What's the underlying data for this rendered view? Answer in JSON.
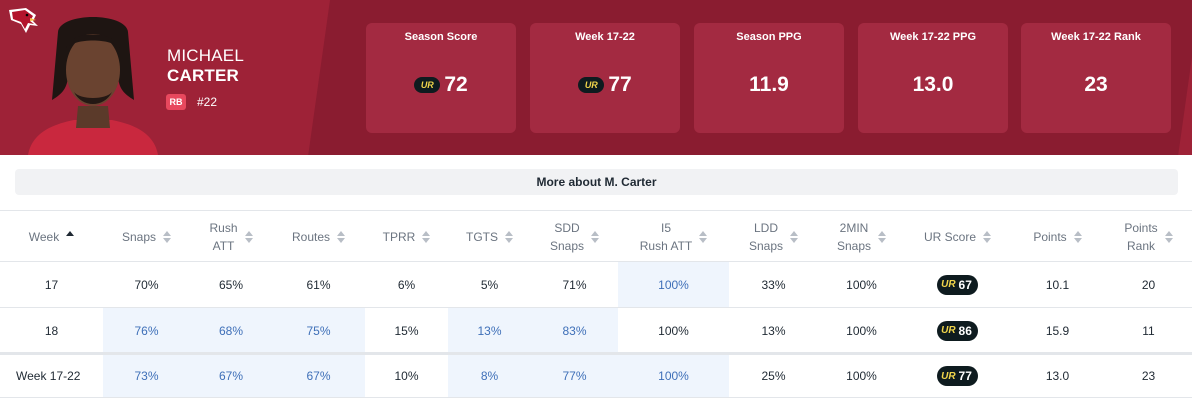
{
  "player": {
    "first_name": "MICHAEL",
    "last_name": "CARTER",
    "position": "RB",
    "jersey": "#22",
    "team_color": "#9e2237"
  },
  "cards": [
    {
      "title": "Season Score",
      "value": "72",
      "ur_logo": true
    },
    {
      "title": "Week 17-22",
      "value": "77",
      "ur_logo": true
    },
    {
      "title": "Season PPG",
      "value": "11.9",
      "ur_logo": false
    },
    {
      "title": "Week 17-22 PPG",
      "value": "13.0",
      "ur_logo": false
    },
    {
      "title": "Week 17-22 Rank",
      "value": "23",
      "ur_logo": false
    }
  ],
  "ur_logo_text": "UR",
  "more_button": "More about M. Carter",
  "table": {
    "headers": [
      {
        "l1": "Week",
        "l2": ""
      },
      {
        "l1": "Snaps",
        "l2": ""
      },
      {
        "l1": "Rush",
        "l2": "ATT"
      },
      {
        "l1": "Routes",
        "l2": ""
      },
      {
        "l1": "TPRR",
        "l2": ""
      },
      {
        "l1": "TGTS",
        "l2": ""
      },
      {
        "l1": "SDD",
        "l2": "Snaps"
      },
      {
        "l1": "I5",
        "l2": "Rush ATT"
      },
      {
        "l1": "LDD",
        "l2": "Snaps"
      },
      {
        "l1": "2MIN",
        "l2": "Snaps"
      },
      {
        "l1": "UR Score",
        "l2": ""
      },
      {
        "l1": "Points",
        "l2": ""
      },
      {
        "l1": "Points",
        "l2": "Rank"
      }
    ],
    "rows": [
      {
        "cells": [
          "17",
          "70%",
          "65%",
          "61%",
          "6%",
          "5%",
          "71%",
          "100%",
          "33%",
          "100%",
          "67",
          "10.1",
          "20"
        ],
        "hl": [
          7
        ]
      },
      {
        "cells": [
          "18",
          "76%",
          "68%",
          "75%",
          "15%",
          "13%",
          "83%",
          "100%",
          "13%",
          "100%",
          "86",
          "15.9",
          "11"
        ],
        "hl": [
          1,
          2,
          3,
          5,
          6
        ]
      },
      {
        "cells": [
          "Week 17-22",
          "73%",
          "67%",
          "67%",
          "10%",
          "8%",
          "77%",
          "100%",
          "25%",
          "100%",
          "77",
          "13.0",
          "23"
        ],
        "hl": [
          1,
          2,
          3,
          5,
          6,
          7
        ]
      }
    ]
  }
}
